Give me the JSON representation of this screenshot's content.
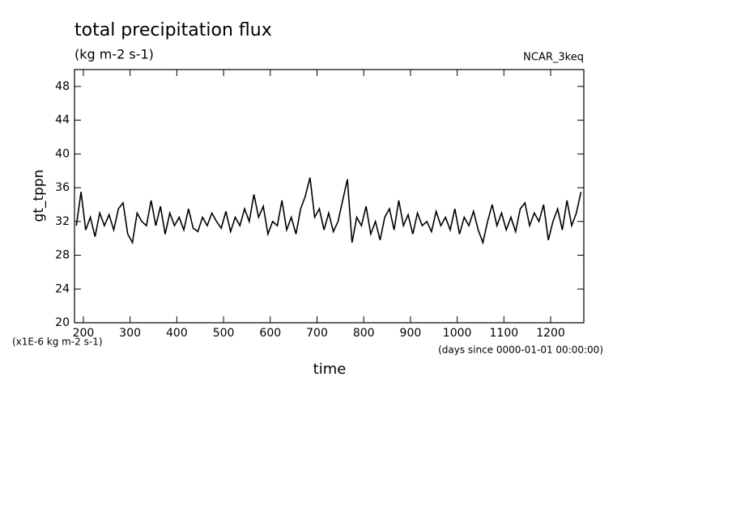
{
  "chart_data": {
    "type": "line",
    "title": "total precipitation flux",
    "subtitle": "(kg m-2 s-1)",
    "annotation": "NCAR_3keq",
    "y_label": "gt_tppn",
    "y_unit": "(x1E-6 kg m-2 s-1)",
    "x_unit": "(days since 0000-01-01 00:00:00)",
    "x_label": "time",
    "color": "#000000",
    "xlim": [
      181,
      1271
    ],
    "ylim": [
      20,
      50
    ],
    "xticks": [
      200,
      300,
      400,
      500,
      600,
      700,
      800,
      900,
      1000,
      1100,
      1200
    ],
    "yticks": [
      20,
      24,
      28,
      32,
      36,
      40,
      44,
      48
    ],
    "x": [
      185,
      195,
      205,
      215,
      225,
      235,
      245,
      255,
      265,
      275,
      285,
      295,
      305,
      315,
      325,
      335,
      345,
      355,
      365,
      375,
      385,
      395,
      405,
      415,
      425,
      435,
      445,
      455,
      465,
      475,
      485,
      495,
      505,
      515,
      525,
      535,
      545,
      555,
      565,
      575,
      585,
      595,
      605,
      615,
      625,
      635,
      645,
      655,
      665,
      675,
      685,
      695,
      705,
      715,
      725,
      735,
      745,
      755,
      765,
      775,
      785,
      795,
      805,
      815,
      825,
      835,
      845,
      855,
      865,
      875,
      885,
      895,
      905,
      915,
      925,
      935,
      945,
      955,
      965,
      975,
      985,
      995,
      1005,
      1015,
      1025,
      1035,
      1045,
      1055,
      1065,
      1075,
      1085,
      1095,
      1105,
      1115,
      1125,
      1135,
      1145,
      1155,
      1165,
      1175,
      1185,
      1195,
      1205,
      1215,
      1225,
      1235,
      1245,
      1255,
      1265
    ],
    "values": [
      31.5,
      35.5,
      31,
      32.5,
      30.2,
      33,
      31.5,
      32.8,
      31,
      33.5,
      34.2,
      30.5,
      29.5,
      33,
      32,
      31.5,
      34.5,
      31.5,
      33.8,
      30.5,
      33,
      31.5,
      32.5,
      31,
      33.5,
      31.2,
      30.8,
      32.5,
      31.5,
      33,
      32,
      31.2,
      33.2,
      30.8,
      32.5,
      31.5,
      33.5,
      32,
      35.2,
      32.5,
      33.8,
      30.5,
      32,
      31.5,
      34.5,
      31,
      32.5,
      30.5,
      33.5,
      35,
      37.2,
      32.5,
      33.5,
      31,
      33,
      30.8,
      32,
      34.5,
      37,
      29.5,
      32.5,
      31.5,
      33.8,
      30.5,
      32,
      29.8,
      32.5,
      33.5,
      31,
      34.5,
      31.5,
      32.8,
      30.5,
      33,
      31.5,
      32,
      30.8,
      33.2,
      31.5,
      32.5,
      31,
      33.5,
      30.5,
      32.5,
      31.5,
      33.2,
      31,
      29.5,
      32,
      34,
      31.5,
      33,
      31,
      32.5,
      30.8,
      33.5,
      34.2,
      31.5,
      33,
      32,
      34,
      29.8,
      32,
      33.5,
      31,
      34.5,
      31.5,
      33,
      35.5
    ]
  }
}
